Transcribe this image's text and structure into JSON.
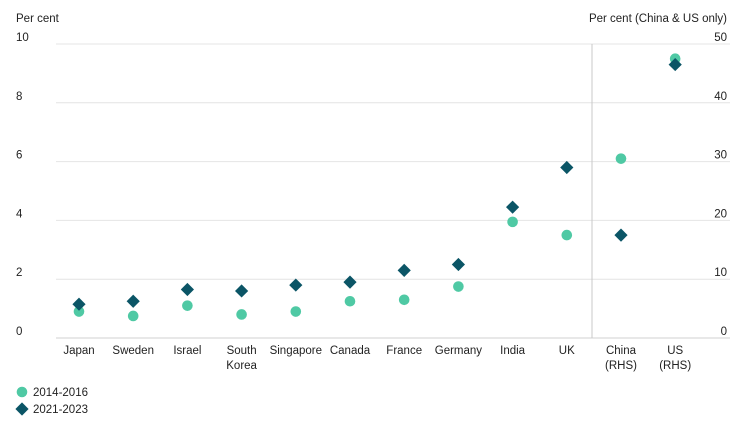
{
  "chart_data": {
    "type": "scatter",
    "left_axis_label": "Per cent",
    "right_axis_label": "Per cent (China & US only)",
    "left_ylim": [
      0,
      10
    ],
    "right_ylim": [
      0,
      50
    ],
    "left_ticks": [
      "0",
      "2",
      "4",
      "6",
      "8",
      "10"
    ],
    "right_ticks": [
      "0",
      "10",
      "20",
      "30",
      "40",
      "50"
    ],
    "categories": [
      {
        "label": [
          "Japan"
        ],
        "axis": "left"
      },
      {
        "label": [
          "Sweden"
        ],
        "axis": "left"
      },
      {
        "label": [
          "Israel"
        ],
        "axis": "left"
      },
      {
        "label": [
          "South",
          "Korea"
        ],
        "axis": "left"
      },
      {
        "label": [
          "Singapore"
        ],
        "axis": "left"
      },
      {
        "label": [
          "Canada"
        ],
        "axis": "left"
      },
      {
        "label": [
          "France"
        ],
        "axis": "left"
      },
      {
        "label": [
          "Germany"
        ],
        "axis": "left"
      },
      {
        "label": [
          "India"
        ],
        "axis": "left"
      },
      {
        "label": [
          "UK"
        ],
        "axis": "left"
      },
      {
        "label": [
          "China",
          "(RHS)"
        ],
        "axis": "right"
      },
      {
        "label": [
          "US",
          "(RHS)"
        ],
        "axis": "right"
      }
    ],
    "series": [
      {
        "name": "2014-2016",
        "marker": "circle",
        "color": "#4fc9a4",
        "values": [
          0.9,
          0.75,
          1.1,
          0.8,
          0.9,
          1.25,
          1.3,
          1.75,
          3.95,
          3.5,
          30.5,
          47.5
        ]
      },
      {
        "name": "2021-2023",
        "marker": "diamond",
        "color": "#0b5566",
        "values": [
          1.15,
          1.25,
          1.65,
          1.6,
          1.8,
          1.9,
          2.3,
          2.5,
          4.45,
          5.8,
          17.5,
          46.5
        ]
      }
    ],
    "grid": true,
    "legend_position": "bottom-left"
  }
}
